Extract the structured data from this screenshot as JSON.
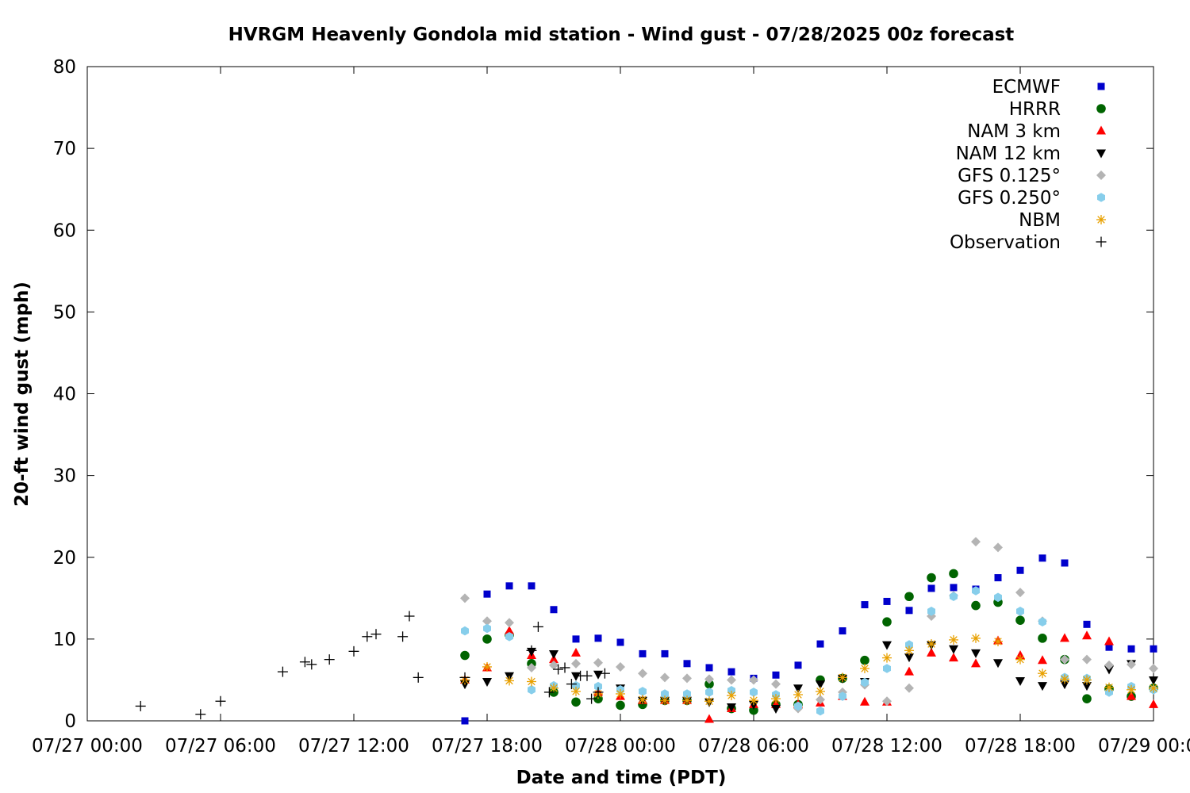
{
  "chart_data": {
    "type": "scatter",
    "title": "HVRGM Heavenly Gondola mid station - Wind gust - 07/28/2025 00z forecast",
    "xlabel": "Date and time (PDT)",
    "ylabel": "20-ft wind gust (mph)",
    "xlim": [
      0,
      48
    ],
    "ylim": [
      0,
      80
    ],
    "x_unit": "hours since 07/27 00:00 PDT",
    "xticks": [
      {
        "x": 0,
        "label": "07/27 00:00"
      },
      {
        "x": 6,
        "label": "07/27 06:00"
      },
      {
        "x": 12,
        "label": "07/27 12:00"
      },
      {
        "x": 18,
        "label": "07/27 18:00"
      },
      {
        "x": 24,
        "label": "07/28 00:00"
      },
      {
        "x": 30,
        "label": "07/28 06:00"
      },
      {
        "x": 36,
        "label": "07/28 12:00"
      },
      {
        "x": 42,
        "label": "07/28 18:00"
      },
      {
        "x": 48,
        "label": "07/29 00:00"
      }
    ],
    "yticks": [
      0,
      10,
      20,
      30,
      40,
      50,
      60,
      70,
      80
    ],
    "grid": false,
    "legend_position": "top-right",
    "series": [
      {
        "name": "ECMWF",
        "marker": "square",
        "color": "#0000cc",
        "x": [
          17,
          18,
          19,
          20,
          21,
          22,
          23,
          24,
          25,
          26,
          27,
          28,
          29,
          30,
          31,
          32,
          33,
          34,
          35,
          36,
          37,
          38,
          39,
          40,
          41,
          42,
          43,
          44,
          45,
          46,
          47,
          48
        ],
        "y": [
          0,
          15.5,
          16.5,
          16.5,
          13.6,
          10,
          10.1,
          9.6,
          8.2,
          8.2,
          7,
          6.5,
          6,
          5.2,
          5.6,
          6.8,
          9.4,
          11,
          14.2,
          14.6,
          13.5,
          16.2,
          16.3,
          16.1,
          17.5,
          18.4,
          19.9,
          19.3,
          11.8,
          9,
          8.8,
          8.8
        ]
      },
      {
        "name": "HRRR",
        "marker": "circle",
        "color": "#006400",
        "x": [
          17,
          18,
          19,
          20,
          21,
          22,
          23,
          24,
          25,
          26,
          27,
          28,
          29,
          30,
          31,
          32,
          33,
          34,
          35,
          36,
          37,
          38,
          39,
          40,
          41,
          42,
          43,
          44,
          45,
          46,
          47,
          48
        ],
        "y": [
          8,
          10,
          10.5,
          7,
          3.5,
          2.3,
          2.7,
          1.9,
          2,
          2.5,
          2.5,
          4.5,
          1.5,
          1.3,
          2,
          2,
          5,
          5.2,
          7.4,
          12.1,
          15.2,
          17.5,
          18,
          14.1,
          14.5,
          12.3,
          10.1,
          7.5,
          2.7,
          3.9,
          3,
          4
        ]
      },
      {
        "name": "NAM 3 km",
        "marker": "triangle-up",
        "color": "#ff0000",
        "x": [
          17,
          18,
          19,
          20,
          21,
          22,
          23,
          24,
          25,
          26,
          27,
          28,
          29,
          30,
          31,
          32,
          33,
          34,
          35,
          36,
          37,
          38,
          39,
          40,
          41,
          42,
          43,
          44,
          45,
          46,
          47,
          48
        ],
        "y": [
          5,
          6.5,
          11,
          8,
          7.5,
          8.3,
          3.5,
          3,
          2.5,
          2.5,
          2.5,
          0.2,
          1.5,
          2,
          2,
          2,
          2.2,
          3,
          2.3,
          2.3,
          6,
          8.3,
          7.7,
          7,
          9.8,
          8,
          7.4,
          10.1,
          10.4,
          9.7,
          3,
          2
        ]
      },
      {
        "name": "NAM 12 km",
        "marker": "triangle-down",
        "color": "#000000",
        "x": [
          17,
          18,
          19,
          20,
          21,
          22,
          23,
          24,
          25,
          26,
          27,
          28,
          29,
          30,
          31,
          32,
          33,
          34,
          35,
          36,
          37,
          38,
          39,
          40,
          41,
          42,
          43,
          44,
          45,
          46,
          47,
          48
        ],
        "y": [
          4.5,
          4.8,
          5.5,
          8.5,
          8.2,
          5.5,
          5.7,
          4,
          2.5,
          2.5,
          2.5,
          2.3,
          1.7,
          2,
          1.5,
          4,
          4.5,
          5.2,
          4.8,
          9.3,
          7.8,
          9.3,
          8.8,
          8.3,
          7.1,
          4.9,
          4.3,
          4.5,
          4.3,
          6.3,
          7,
          5
        ]
      },
      {
        "name": "GFS 0.125°",
        "marker": "diamond",
        "color": "#b4b4b4",
        "x": [
          17,
          18,
          19,
          20,
          21,
          22,
          23,
          24,
          25,
          26,
          27,
          28,
          29,
          30,
          31,
          32,
          33,
          34,
          35,
          36,
          37,
          38,
          39,
          40,
          41,
          42,
          43,
          44,
          45,
          46,
          47,
          48
        ],
        "y": [
          15,
          12.2,
          12,
          6.5,
          6.8,
          7,
          7.1,
          6.6,
          5.8,
          5.3,
          5.2,
          5.1,
          5,
          5,
          4.5,
          1.5,
          2.6,
          3.5,
          4.4,
          2.4,
          4,
          12.8,
          15.3,
          21.9,
          21.2,
          15.7,
          12.2,
          7.5,
          7.5,
          6.8,
          6.9,
          6.4
        ]
      },
      {
        "name": "GFS 0.250°",
        "marker": "hexagon",
        "color": "#87ceeb",
        "x": [
          17,
          18,
          19,
          20,
          21,
          22,
          23,
          24,
          25,
          26,
          27,
          28,
          29,
          30,
          31,
          32,
          33,
          34,
          35,
          36,
          37,
          38,
          39,
          40,
          41,
          42,
          43,
          44,
          45,
          46,
          47,
          48
        ],
        "y": [
          11,
          11.3,
          10.3,
          3.8,
          4.3,
          4.3,
          4.2,
          3.8,
          3.6,
          3.3,
          3.3,
          3.5,
          3.7,
          3.5,
          3.2,
          1.8,
          1.2,
          3,
          4.7,
          6.4,
          9.3,
          13.4,
          15.2,
          15.9,
          15.1,
          13.4,
          12.1,
          5.3,
          5.2,
          3.5,
          4.2,
          3.8
        ]
      },
      {
        "name": "NBM",
        "marker": "asterisk",
        "color": "#e8a000",
        "x": [
          17,
          18,
          19,
          20,
          21,
          22,
          23,
          24,
          25,
          26,
          27,
          28,
          29,
          30,
          31,
          32,
          33,
          34,
          35,
          36,
          37,
          38,
          39,
          40,
          41,
          42,
          43,
          44,
          45,
          46,
          47,
          48
        ],
        "y": [
          5,
          6.6,
          4.9,
          4.8,
          4,
          3.6,
          3.3,
          3.3,
          2.6,
          2.5,
          2.5,
          2.4,
          3.1,
          2.5,
          2.7,
          3.2,
          3.6,
          5.3,
          6.4,
          7.7,
          8.6,
          9.4,
          9.9,
          10.1,
          9.7,
          7.5,
          5.8,
          5.1,
          5,
          4.1,
          3.8,
          4
        ]
      },
      {
        "name": "Observation",
        "marker": "plus",
        "color": "#000000",
        "x": [
          2.4,
          5.1,
          6.0,
          8.8,
          9.8,
          10.1,
          10.9,
          12.0,
          12.6,
          13.0,
          14.2,
          14.5,
          14.9,
          17.0,
          20.0,
          20.3,
          20.8,
          21.2,
          21.5,
          21.8,
          22.2,
          22.5,
          22.7,
          23.0,
          23.3
        ],
        "y": [
          1.8,
          0.8,
          2.4,
          6,
          7.2,
          6.9,
          7.5,
          8.5,
          10.3,
          10.6,
          10.3,
          12.8,
          5.3,
          5.3,
          8.6,
          11.5,
          3.5,
          6.3,
          6.5,
          4.5,
          5.5,
          5.5,
          2.7,
          3.5,
          5.8
        ]
      }
    ]
  }
}
